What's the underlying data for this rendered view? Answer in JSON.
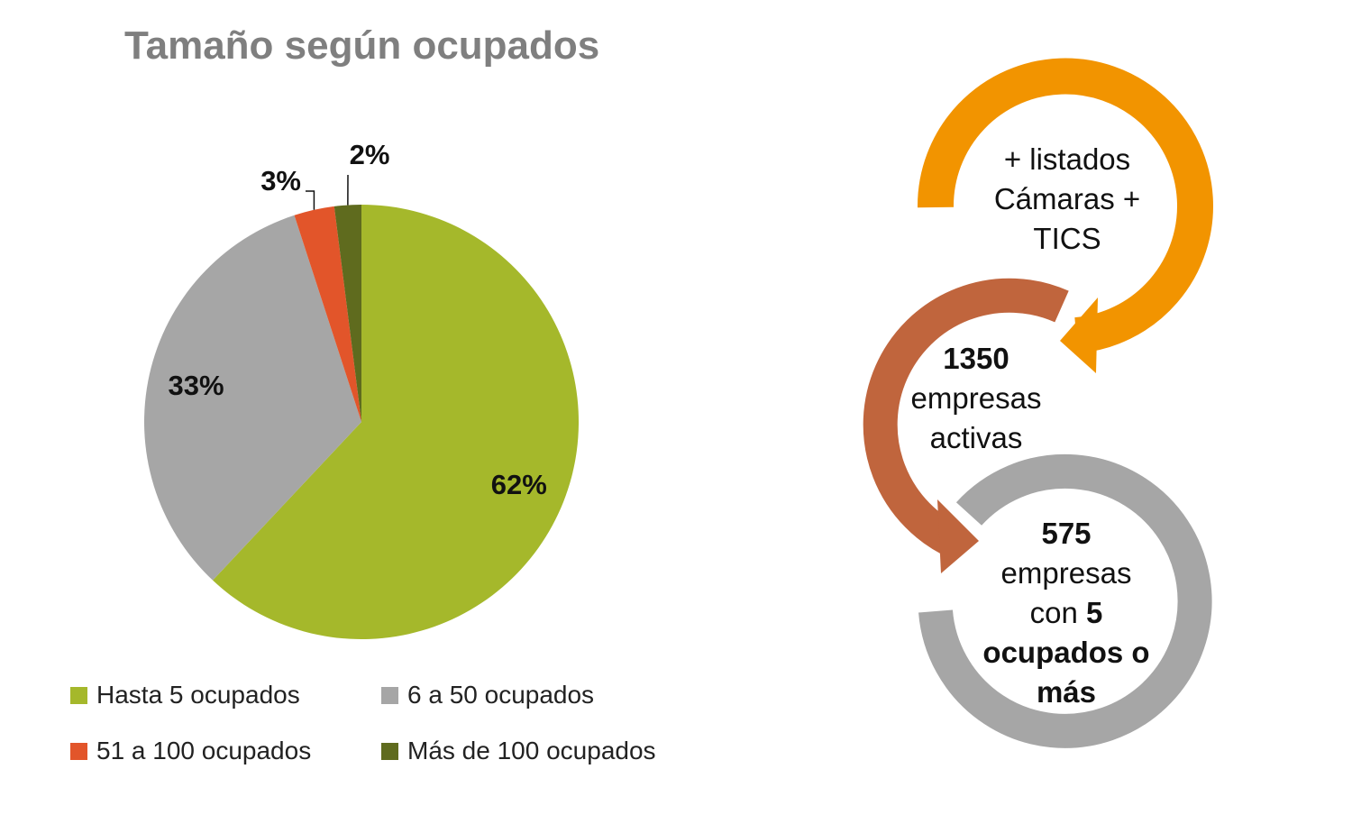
{
  "chart_data": {
    "type": "pie",
    "title": "Tamaño según ocupados",
    "categories": [
      "Hasta 5 ocupados",
      "6 a 50 ocupados",
      "51 a 100 ocupados",
      "Más de 100 ocupados"
    ],
    "values": [
      62,
      33,
      3,
      2
    ],
    "data_labels": [
      "62%",
      "33%",
      "3%",
      "2%"
    ],
    "colors": [
      "#a5b82b",
      "#a6a6a6",
      "#e2552a",
      "#5f6b1e"
    ],
    "legend_position": "bottom"
  },
  "flow": {
    "cycle1": {
      "line1": "+ listados",
      "line2": "Cámaras +",
      "line3": "TICS",
      "color": "#f29400"
    },
    "cycle2": {
      "number": "1350",
      "line2": "empresas",
      "line3": "activas",
      "color": "#c0653d"
    },
    "cycle3": {
      "number": "575",
      "line2": "empresas",
      "line3_prefix": "con ",
      "line3_bold": "5",
      "line4": "ocupados o",
      "line5": "más",
      "color": "#a6a6a6"
    }
  }
}
